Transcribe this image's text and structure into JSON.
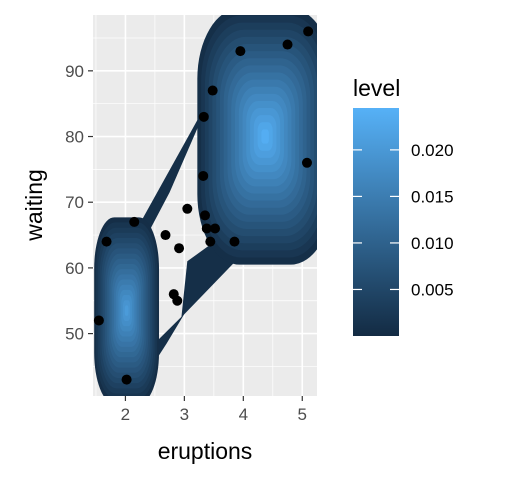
{
  "chart_data": {
    "type": "density2d_filled",
    "xlabel": "eruptions",
    "ylabel": "waiting",
    "xlim": [
      1.45,
      5.25
    ],
    "ylim": [
      40.5,
      98.5
    ],
    "x_ticks": [
      2,
      3,
      4,
      5
    ],
    "y_ticks": [
      50,
      60,
      70,
      80,
      90
    ],
    "grid": true,
    "legend": {
      "title": "level",
      "position": "right",
      "range": [
        0,
        0.0245
      ],
      "ticks": [
        0.005,
        0.01,
        0.015,
        0.02
      ],
      "tick_labels": [
        "0.005",
        "0.010",
        "0.015",
        "0.020"
      ],
      "color_low": "#132B43",
      "color_high": "#56B1F7"
    },
    "density_peaks": [
      {
        "x": 4.37,
        "y": 80.0,
        "level": 0.0245
      },
      {
        "x": 2.02,
        "y": 53.5,
        "level": 0.021
      }
    ],
    "points": [
      {
        "x": 1.55,
        "y": 52
      },
      {
        "x": 1.68,
        "y": 64
      },
      {
        "x": 2.02,
        "y": 43
      },
      {
        "x": 2.15,
        "y": 67
      },
      {
        "x": 2.68,
        "y": 65
      },
      {
        "x": 2.82,
        "y": 56
      },
      {
        "x": 2.88,
        "y": 55
      },
      {
        "x": 2.91,
        "y": 63
      },
      {
        "x": 3.05,
        "y": 69
      },
      {
        "x": 3.35,
        "y": 68
      },
      {
        "x": 3.38,
        "y": 66
      },
      {
        "x": 3.52,
        "y": 66
      },
      {
        "x": 3.44,
        "y": 64
      },
      {
        "x": 3.85,
        "y": 64
      },
      {
        "x": 3.32,
        "y": 74
      },
      {
        "x": 3.33,
        "y": 83
      },
      {
        "x": 3.48,
        "y": 87
      },
      {
        "x": 3.95,
        "y": 93
      },
      {
        "x": 4.75,
        "y": 94
      },
      {
        "x": 5.1,
        "y": 96
      },
      {
        "x": 5.08,
        "y": 76
      }
    ]
  }
}
